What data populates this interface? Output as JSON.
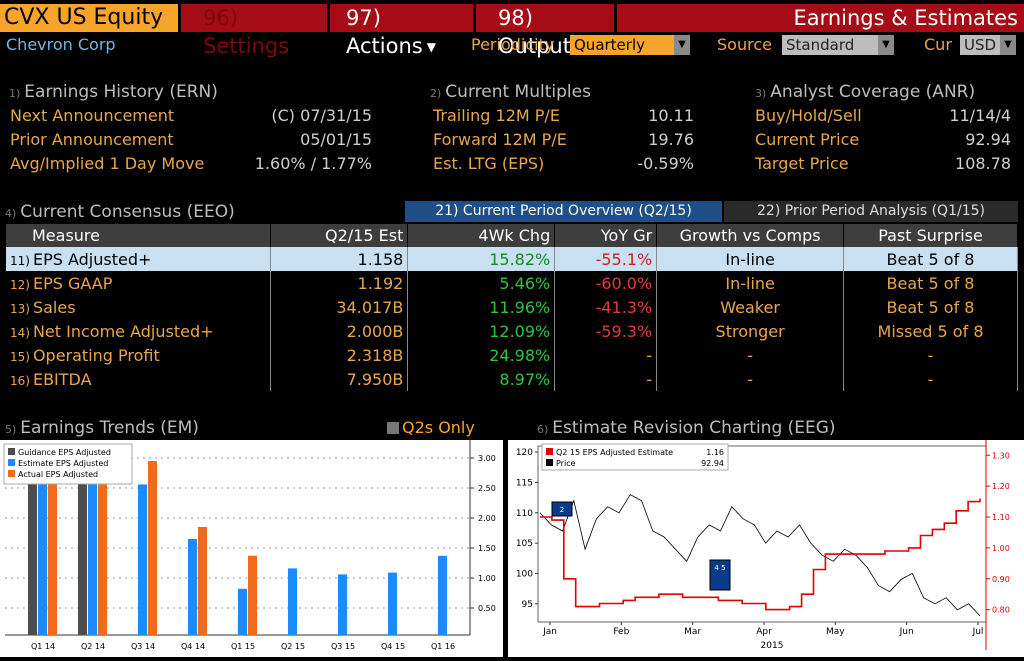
{
  "header": {
    "ticker": "CVX US Equity",
    "menu_settings": "96) Settings",
    "menu_actions": "97) Actions",
    "menu_output": "98) Output",
    "screen_title": "Earnings & Estimates",
    "company": "Chevron Corp",
    "periodicity_label": "Periodicity",
    "periodicity_value": "Quarterly",
    "source_label": "Source",
    "source_value": "Standard",
    "cur_label": "Cur",
    "cur_value": "USD"
  },
  "earnings_history": {
    "num": "1)",
    "title": "Earnings History (ERN)",
    "rows": [
      {
        "label": "Next Announcement",
        "value": "(C)  07/31/15"
      },
      {
        "label": "Prior Announcement",
        "value": "05/01/15"
      },
      {
        "label": "Avg/Implied 1 Day Move",
        "value": "1.60% / 1.77%"
      }
    ]
  },
  "current_multiples": {
    "num": "2)",
    "title": "Current Multiples",
    "rows": [
      {
        "label": "Trailing 12M P/E",
        "value": "10.11"
      },
      {
        "label": "Forward 12M P/E",
        "value": "19.76"
      },
      {
        "label": "Est. LTG (EPS)",
        "value": "-0.59%"
      }
    ]
  },
  "analyst_coverage": {
    "num": "3)",
    "title": "Analyst Coverage (ANR)",
    "rows": [
      {
        "label": "Buy/Hold/Sell",
        "value": "11/14/4"
      },
      {
        "label": "Current Price",
        "value": "92.94"
      },
      {
        "label": "Target Price",
        "value": "108.78"
      }
    ]
  },
  "consensus": {
    "num": "4)",
    "title": "Current Consensus (EEO)",
    "tab_current": "21) Current Period Overview (Q2/15)",
    "tab_prior": "22) Prior Period Analysis (Q1/15)",
    "columns": [
      "Measure",
      "Q2/15 Est",
      "4Wk Chg",
      "YoY Gr",
      "Growth vs Comps",
      "Past Surprise"
    ],
    "rows": [
      {
        "num": "11)",
        "measure": "EPS Adjusted+",
        "est": "1.158",
        "chg": "15.82%",
        "yoy": "-55.1%",
        "growth": "In-line",
        "surprise": "Beat 5 of 8"
      },
      {
        "num": "12)",
        "measure": "EPS GAAP",
        "est": "1.192",
        "chg": "5.46%",
        "yoy": "-60.0%",
        "growth": "In-line",
        "surprise": "Beat 5 of 8"
      },
      {
        "num": "13)",
        "measure": "Sales",
        "est": "34.017B",
        "chg": "11.96%",
        "yoy": "-41.3%",
        "growth": "Weaker",
        "surprise": "Beat 5 of 8"
      },
      {
        "num": "14)",
        "measure": "Net Income Adjusted+",
        "est": "2.000B",
        "chg": "12.09%",
        "yoy": "-59.3%",
        "growth": "Stronger",
        "surprise": "Missed 5 of 8"
      },
      {
        "num": "15)",
        "measure": "Operating Profit",
        "est": "2.318B",
        "chg": "24.98%",
        "yoy": "-",
        "growth": "-",
        "surprise": "-"
      },
      {
        "num": "16)",
        "measure": "EBITDA",
        "est": "7.950B",
        "chg": "8.97%",
        "yoy": "-",
        "growth": "-",
        "surprise": "-"
      }
    ]
  },
  "earnings_trends": {
    "num": "5)",
    "title": "Earnings Trends (EM)",
    "toggle_label": "Q2s Only"
  },
  "revision_charting": {
    "num": "6)",
    "title": "Estimate Revision Charting (EEG)"
  },
  "chart_data": [
    {
      "type": "bar",
      "categories": [
        "Q1 14",
        "Q2 14",
        "Q3 14",
        "Q4 14",
        "Q1 15",
        "Q2 15",
        "Q3 15",
        "Q4 15",
        "Q1 16"
      ],
      "series": [
        {
          "name": "Guidance EPS Adjusted",
          "color": "#4d4d4d",
          "values": [
            3.1,
            3.1,
            null,
            null,
            null,
            null,
            null,
            null,
            null
          ]
        },
        {
          "name": "Estimate EPS Adjusted",
          "color": "#1a8cff",
          "values": [
            3.1,
            3.1,
            2.56,
            1.65,
            0.82,
            1.16,
            1.06,
            1.09,
            1.37
          ]
        },
        {
          "name": "Actual EPS Adjusted",
          "color": "#f26a1b",
          "values": [
            3.1,
            3.1,
            2.95,
            1.85,
            1.37,
            null,
            null,
            null,
            null
          ]
        }
      ],
      "y_ticks": [
        "3.00",
        "2.50",
        "2.00",
        "1.50",
        "1.00",
        "0.50"
      ],
      "ylim": [
        0.05,
        3.2
      ]
    },
    {
      "type": "line",
      "legend": [
        {
          "name": "Q2 15 EPS Adjusted Estimate",
          "value": "1.16",
          "color": "#e00000"
        },
        {
          "name": "Price",
          "value": "92.94",
          "color": "#000000"
        }
      ],
      "x_labels": [
        "Jan",
        "Feb",
        "Mar",
        "Apr",
        "May",
        "Jun",
        "Jul"
      ],
      "x_year": "2015",
      "left_axis": {
        "ticks": [
          "120",
          "115",
          "110",
          "105",
          "100",
          "95"
        ],
        "range": [
          92,
          121
        ]
      },
      "right_axis": {
        "ticks": [
          "1.30",
          "1.20",
          "1.10",
          "1.00",
          "0.90",
          "0.80"
        ],
        "range": [
          0.76,
          1.33
        ]
      },
      "price": [
        110,
        108,
        107,
        112,
        104,
        109,
        111,
        110,
        113,
        112,
        107,
        106,
        104,
        102,
        106,
        108,
        107,
        111,
        109,
        108,
        105,
        107,
        106,
        108,
        105,
        103,
        102,
        104,
        103,
        101,
        98,
        97,
        99,
        100,
        96,
        95,
        96,
        94,
        95,
        93
      ],
      "estimate": [
        1.1,
        1.09,
        0.9,
        0.81,
        0.81,
        0.82,
        0.82,
        0.83,
        0.84,
        0.84,
        0.85,
        0.85,
        0.84,
        0.84,
        0.84,
        0.83,
        0.83,
        0.82,
        0.82,
        0.8,
        0.8,
        0.81,
        0.85,
        0.93,
        0.98,
        0.98,
        0.98,
        0.98,
        0.98,
        0.99,
        0.99,
        1.0,
        1.04,
        1.06,
        1.08,
        1.12,
        1.15,
        1.16
      ],
      "markers": [
        "2",
        "4 5"
      ]
    }
  ]
}
